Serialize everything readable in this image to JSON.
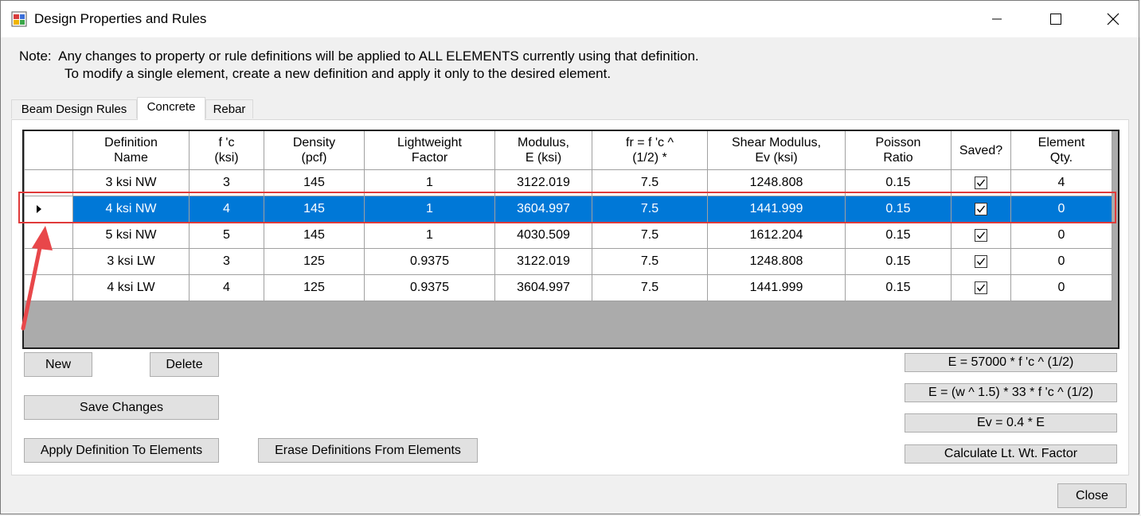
{
  "window": {
    "title": "Design Properties and Rules",
    "close_glyph": "✕",
    "max_glyph": "☐",
    "min_glyph": "—"
  },
  "note": {
    "line1": "Note:  Any changes to property or rule definitions will be applied to ALL ELEMENTS currently using that definition.",
    "line2": "To modify a single element, create a new definition and apply it only to the desired element."
  },
  "tabs": [
    {
      "label": "Beam Design Rules",
      "active": false
    },
    {
      "label": "Concrete",
      "active": true
    },
    {
      "label": "Rebar",
      "active": false
    }
  ],
  "grid": {
    "columns": [
      "",
      "Definition\nName",
      "f 'c\n(ksi)",
      "Density\n(pcf)",
      "Lightweight\nFactor",
      "Modulus,\nE (ksi)",
      "fr = f 'c ^\n(1/2) *",
      "Shear Modulus,\nEv (ksi)",
      "Poisson\nRatio",
      "Saved?",
      "Element\nQty."
    ],
    "rows": [
      {
        "name": "3 ksi NW",
        "fc": "3",
        "density": "145",
        "lw": "1",
        "modulus": "3122.019",
        "fr": "7.5",
        "shear": "1248.808",
        "poisson": "0.15",
        "saved": true,
        "qty": "4",
        "selected": false
      },
      {
        "name": "4 ksi NW",
        "fc": "4",
        "density": "145",
        "lw": "1",
        "modulus": "3604.997",
        "fr": "7.5",
        "shear": "1441.999",
        "poisson": "0.15",
        "saved": true,
        "qty": "0",
        "selected": true
      },
      {
        "name": "5 ksi NW",
        "fc": "5",
        "density": "145",
        "lw": "1",
        "modulus": "4030.509",
        "fr": "7.5",
        "shear": "1612.204",
        "poisson": "0.15",
        "saved": true,
        "qty": "0",
        "selected": false
      },
      {
        "name": "3 ksi LW",
        "fc": "3",
        "density": "125",
        "lw": "0.9375",
        "modulus": "3122.019",
        "fr": "7.5",
        "shear": "1248.808",
        "poisson": "0.15",
        "saved": true,
        "qty": "0",
        "selected": false
      },
      {
        "name": "4 ksi LW",
        "fc": "4",
        "density": "125",
        "lw": "0.9375",
        "modulus": "3604.997",
        "fr": "7.5",
        "shear": "1441.999",
        "poisson": "0.15",
        "saved": true,
        "qty": "0",
        "selected": false
      }
    ]
  },
  "buttons": {
    "new": "New",
    "delete": "Delete",
    "save_changes": "Save Changes",
    "apply": "Apply Definition To Elements",
    "erase": "Erase Definitions From Elements",
    "formula_e": "E = 57000 * f 'c ^ (1/2)",
    "formula_e_w": "E = (w ^ 1.5) * 33 * f 'c ^ (1/2)",
    "formula_ev": "Ev = 0.4 * E",
    "calc_lw": "Calculate Lt. Wt. Factor",
    "close": "Close"
  },
  "colors": {
    "selection": "#0078d7",
    "highlight_outline": "#e03a3a",
    "grid_background": "#ababab"
  }
}
